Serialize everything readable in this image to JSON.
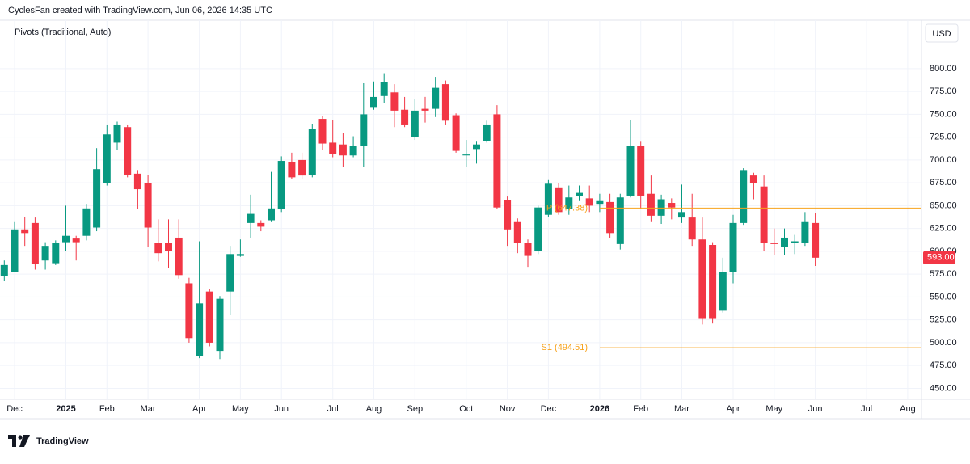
{
  "chart_data": {
    "type": "candlestick",
    "header": "CyclesFan created with TradingView.com, Jun 06, 2026 14:35 UTC",
    "indicator": "Pivots (Traditional, Auto)",
    "currency": "USD",
    "brand": "TradingView",
    "categories": [
      null,
      "Dec",
      null,
      null,
      null,
      null,
      "2025",
      null,
      null,
      null,
      "Feb",
      null,
      null,
      null,
      "Mar",
      null,
      null,
      null,
      null,
      "Apr",
      null,
      null,
      null,
      "May",
      null,
      null,
      null,
      "Jun",
      null,
      null,
      null,
      null,
      "Jul",
      null,
      null,
      null,
      "Aug",
      null,
      null,
      null,
      "Sep",
      null,
      null,
      null,
      null,
      "Oct",
      null,
      null,
      null,
      "Nov",
      null,
      null,
      null,
      "Dec",
      null,
      null,
      null,
      null,
      "2026",
      null,
      null,
      null,
      "Feb",
      null,
      null,
      null,
      "Mar",
      null,
      null,
      null,
      null,
      "Apr",
      null,
      null,
      null,
      "May",
      null,
      null,
      null,
      "Jun",
      null,
      null,
      null,
      null,
      "Jul",
      null,
      null,
      null,
      "Aug"
    ],
    "open": [
      573,
      577,
      624,
      631,
      590,
      587,
      610,
      614,
      617,
      626,
      675,
      719,
      736,
      685,
      675,
      609,
      609,
      615,
      565,
      485,
      556,
      491,
      556,
      595,
      631,
      631,
      634,
      646,
      698,
      700,
      684,
      745,
      719,
      717,
      705,
      715,
      758,
      770,
      774,
      755,
      725,
      756,
      756,
      783,
      749,
      705,
      712,
      721,
      750,
      656,
      632,
      609,
      600,
      640,
      670,
      646,
      661,
      658,
      652,
      654,
      608,
      661,
      715,
      663,
      639,
      653,
      637,
      637,
      613,
      607,
      535,
      577,
      631,
      683,
      671,
      609,
      605,
      609,
      609,
      631,
      null,
      null,
      null,
      null,
      null,
      null,
      null,
      null,
      null
    ],
    "high": [
      590,
      632,
      638,
      637,
      610,
      612,
      650,
      617,
      652,
      713,
      738,
      742,
      738,
      689,
      684,
      635,
      635,
      635,
      571,
      611,
      559,
      551,
      606,
      613,
      662,
      634,
      687,
      704,
      708,
      708,
      739,
      748,
      744,
      730,
      726,
      784,
      786,
      795,
      783,
      769,
      767,
      769,
      791,
      787,
      751,
      722,
      720,
      743,
      760,
      660,
      636,
      613,
      650,
      678,
      675,
      672,
      672,
      672,
      663,
      663,
      663,
      744,
      720,
      683,
      662,
      658,
      673,
      663,
      637,
      610,
      593,
      640,
      691,
      686,
      683,
      625,
      625,
      618,
      643,
      642,
      null,
      null,
      null,
      null,
      null,
      null,
      null,
      null,
      null
    ],
    "low": [
      568,
      577,
      606,
      580,
      580,
      585,
      600,
      590,
      612,
      622,
      672,
      711,
      681,
      646,
      605,
      589,
      582,
      570,
      500,
      483,
      496,
      482,
      530,
      594,
      615,
      622,
      632,
      643,
      679,
      679,
      681,
      711,
      703,
      692,
      703,
      692,
      755,
      762,
      736,
      736,
      722,
      741,
      747,
      738,
      708,
      692,
      696,
      719,
      646,
      606,
      598,
      583,
      597,
      638,
      640,
      640,
      655,
      643,
      643,
      615,
      602,
      659,
      646,
      632,
      630,
      635,
      631,
      606,
      520,
      521,
      533,
      565,
      629,
      657,
      600,
      596,
      596,
      597,
      606,
      584,
      null,
      null,
      null,
      null,
      null,
      null,
      null,
      null,
      null
    ],
    "close": [
      585,
      624,
      620,
      586,
      606,
      609,
      617,
      610,
      647,
      690,
      728,
      738,
      684,
      668,
      626,
      598,
      600,
      574,
      505,
      543,
      500,
      548,
      597,
      597,
      641,
      627,
      647,
      699,
      681,
      683,
      734,
      718,
      707,
      705,
      715,
      750,
      769,
      785,
      754,
      738,
      754,
      754,
      779,
      743,
      710,
      706,
      717,
      738,
      648,
      624,
      609,
      595,
      648,
      674,
      643,
      659,
      664,
      650,
      655,
      620,
      659,
      715,
      661,
      639,
      657,
      648,
      643,
      613,
      526,
      526,
      577,
      631,
      689,
      675,
      609,
      608,
      615,
      611,
      632,
      593,
      null,
      null,
      null,
      null,
      null,
      null,
      null,
      null,
      null
    ],
    "up_color": "#089981",
    "down_color": "#f23645",
    "ylim": [
      438,
      853
    ],
    "yticks": [
      {
        "value": 450,
        "label": "450.00"
      },
      {
        "value": 475,
        "label": "475.00"
      },
      {
        "value": 500,
        "label": "500.00"
      },
      {
        "value": 525,
        "label": "525.00"
      },
      {
        "value": 550,
        "label": "550.00"
      },
      {
        "value": 575,
        "label": "575.00"
      },
      {
        "value": 600,
        "label": "600.00"
      },
      {
        "value": 625,
        "label": "625.00"
      },
      {
        "value": 650,
        "label": "650.00"
      },
      {
        "value": 675,
        "label": "675.00"
      },
      {
        "value": 700,
        "label": "700.00"
      },
      {
        "value": 725,
        "label": "725.00"
      },
      {
        "value": 750,
        "label": "750.00"
      },
      {
        "value": 775,
        "label": "775.00"
      },
      {
        "value": 800,
        "label": "800.00"
      }
    ],
    "grid": true,
    "pivots": [
      {
        "label": "P (647.38)",
        "value": 647.38
      },
      {
        "label": "S1 (494.51)",
        "value": 494.51
      }
    ],
    "pivot_color": "#f7a21b",
    "last_price": {
      "value": 593,
      "label": "593.00"
    }
  }
}
